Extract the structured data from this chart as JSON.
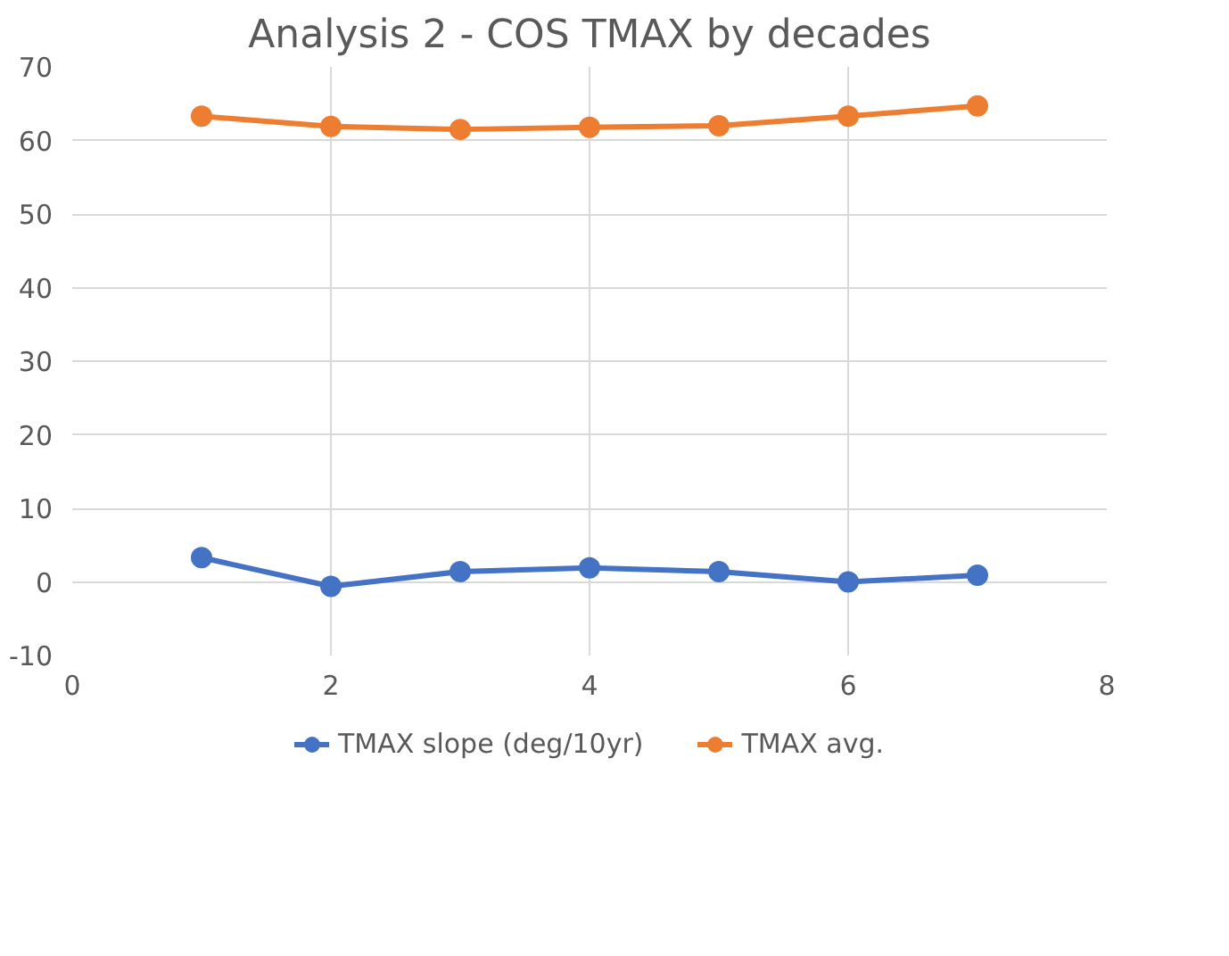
{
  "chart_data": {
    "type": "line",
    "title": "Analysis 2 - COS TMAX by decades",
    "x": [
      1,
      2,
      3,
      4,
      5,
      6,
      7
    ],
    "series": [
      {
        "name": "TMAX slope (deg/10yr)",
        "color": "#4472c4",
        "values": [
          3.3,
          -0.6,
          1.4,
          1.9,
          1.4,
          0,
          0.9
        ]
      },
      {
        "name": "TMAX avg.",
        "color": "#ed7d31",
        "values": [
          63.3,
          61.9,
          61.5,
          61.8,
          62.0,
          63.3,
          64.7
        ]
      }
    ],
    "xlim": [
      0,
      8
    ],
    "xticks": [
      0,
      2,
      4,
      6,
      8
    ],
    "ylim": [
      -10,
      70
    ],
    "yticks": [
      -10,
      0,
      10,
      20,
      30,
      40,
      50,
      60,
      70
    ],
    "grid": true,
    "legend": "bottom",
    "marker": "circle",
    "line_style": "solid"
  }
}
